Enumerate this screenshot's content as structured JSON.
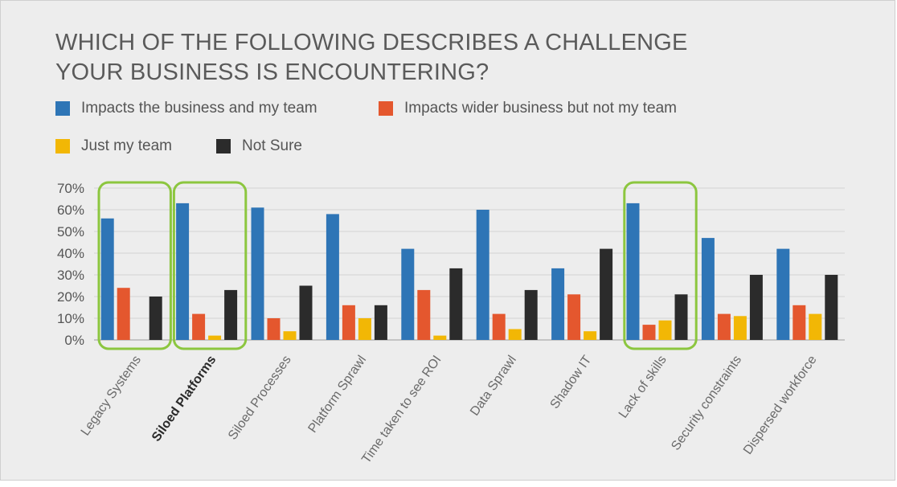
{
  "title_line1": "WHICH OF THE FOLLOWING DESCRIBES A CHALLENGE",
  "title_line2": "YOUR BUSINESS IS ENCOUNTERING?",
  "legend": [
    {
      "label": "Impacts the business and my team",
      "color": "#2e75b6"
    },
    {
      "label": "Impacts wider business but not my team",
      "color": "#e4572e"
    },
    {
      "label": "Just my team",
      "color": "#f2b705"
    },
    {
      "label": "Not Sure",
      "color": "#2b2b2b"
    }
  ],
  "highlight_color": "#8cc63f",
  "chart_data": {
    "type": "bar",
    "title": "WHICH OF THE FOLLOWING DESCRIBES A CHALLENGE YOUR BUSINESS IS ENCOUNTERING?",
    "categories": [
      "Legacy Systems",
      "Siloed Platforms",
      "Siloed Processes",
      "Platform Sprawl",
      "Time taken to see ROI",
      "Data Sprawl",
      "Shadow IT",
      "Lack of skills",
      "Security constraints",
      "Dispersed workforce"
    ],
    "bold_category": "Siloed Platforms",
    "highlighted_categories": [
      "Legacy Systems",
      "Siloed Platforms",
      "Lack of skills"
    ],
    "series": [
      {
        "name": "Impacts the business and my team",
        "values": [
          56,
          63,
          61,
          58,
          42,
          60,
          33,
          63,
          47,
          42
        ]
      },
      {
        "name": "Impacts wider business but not my team",
        "values": [
          24,
          12,
          10,
          16,
          23,
          12,
          21,
          7,
          12,
          16
        ]
      },
      {
        "name": "Just my team",
        "values": [
          0,
          2,
          4,
          10,
          2,
          5,
          4,
          9,
          11,
          12
        ]
      },
      {
        "name": "Not Sure",
        "values": [
          20,
          23,
          25,
          16,
          33,
          23,
          42,
          21,
          30,
          30
        ]
      }
    ],
    "yticks": [
      "0%",
      "10%",
      "20%",
      "30%",
      "40%",
      "50%",
      "60%",
      "70%"
    ],
    "ylim": [
      0,
      70
    ],
    "grid": true,
    "legend_position": "top"
  }
}
